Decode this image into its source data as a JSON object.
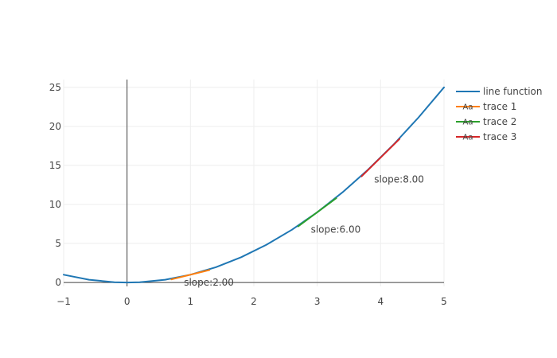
{
  "chart_data": {
    "type": "line",
    "xlim": [
      -1,
      5
    ],
    "ylim": [
      -0.5,
      26
    ],
    "x_ticks": [
      -1,
      0,
      1,
      2,
      3,
      4,
      5
    ],
    "y_ticks": [
      0,
      5,
      10,
      15,
      20,
      25
    ],
    "x_tick_labels": [
      "−1",
      "0",
      "1",
      "2",
      "3",
      "4",
      "5"
    ],
    "y_tick_labels": [
      "0",
      "5",
      "10",
      "15",
      "20",
      "25"
    ],
    "grid": true,
    "zero_lines": true,
    "legend_position": "right",
    "series": [
      {
        "name": "line function",
        "color": "#1f77b4",
        "x": [
          -1,
          -0.6,
          -0.2,
          0,
          0.2,
          0.6,
          1,
          1.4,
          1.8,
          2.2,
          2.6,
          3,
          3.4,
          3.8,
          4.2,
          4.6,
          5
        ],
        "y": [
          1,
          0.36,
          0.04,
          0,
          0.04,
          0.36,
          1,
          1.96,
          3.24,
          4.84,
          6.76,
          9,
          11.56,
          14.44,
          17.64,
          21.16,
          25
        ]
      },
      {
        "name": "trace 1",
        "color": "#ff7f0e",
        "legend_symbol": "Aa",
        "x": [
          0.7,
          1.3
        ],
        "y": [
          0.4,
          1.6
        ]
      },
      {
        "name": "trace 2",
        "color": "#2ca02c",
        "legend_symbol": "Aa",
        "x": [
          2.7,
          3.3
        ],
        "y": [
          7.2,
          10.8
        ]
      },
      {
        "name": "trace 3",
        "color": "#d62728",
        "legend_symbol": "Aa",
        "x": [
          3.7,
          4.3
        ],
        "y": [
          13.6,
          18.4
        ]
      }
    ],
    "annotations": [
      {
        "text": "slope:2.00",
        "x": 1.3,
        "y": 0.4
      },
      {
        "text": "slope:6.00",
        "x": 3.3,
        "y": 7.2
      },
      {
        "text": "slope:8.00",
        "x": 4.3,
        "y": 13.6
      }
    ]
  }
}
